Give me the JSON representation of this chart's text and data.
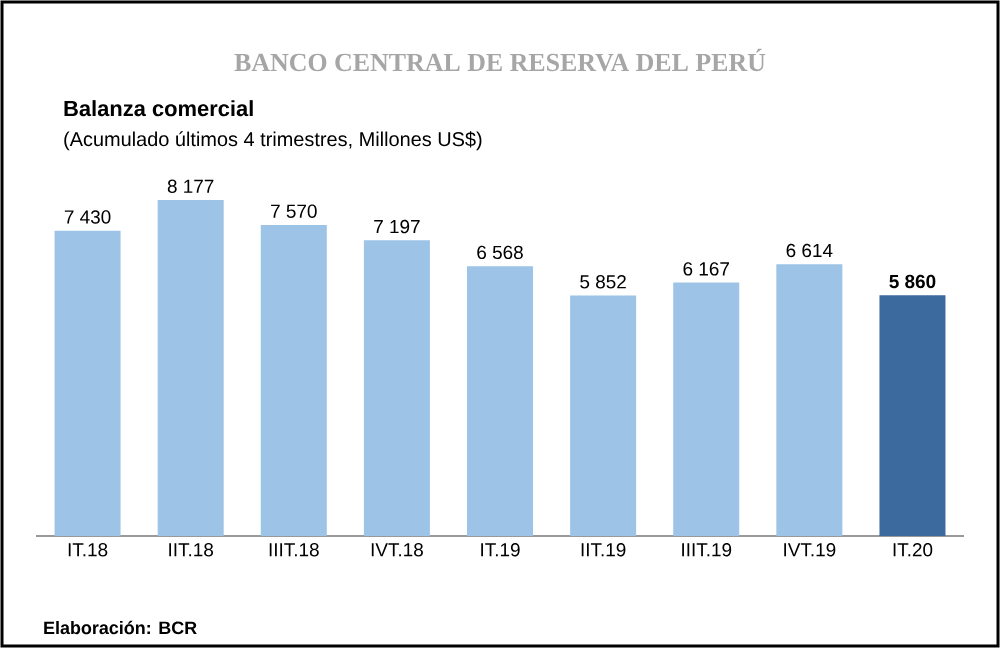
{
  "chart_data": {
    "type": "bar",
    "title": "Balanza comercial",
    "subtitle": "(Acumulado últimos 4 trimestres, Millones US$)",
    "annotations": [
      "BANCO CENTRAL DE RESERVA DEL PERÚ",
      "Elaboración: BCR"
    ],
    "categories": [
      "IT.18",
      "IIT.18",
      "IIIT.18",
      "IVT.18",
      "IT.19",
      "IIT.19",
      "IIIT.19",
      "IVT.19",
      "IT.20"
    ],
    "values": [
      7430,
      8177,
      7570,
      7197,
      6568,
      5852,
      6167,
      6614,
      5860
    ],
    "value_labels": [
      "7 430",
      "8 177",
      "7 570",
      "7 197",
      "6 568",
      "5 852",
      "6 167",
      "6 614",
      "**5 860**"
    ],
    "colors": [
      "#9dc3e6",
      "#9dc3e6",
      "#9dc3e6",
      "#9dc3e6",
      "#9dc3e6",
      "#9dc3e6",
      "#9dc3e6",
      "#9dc3e6",
      "#3d6a9e"
    ],
    "data_labels": false
  }
}
